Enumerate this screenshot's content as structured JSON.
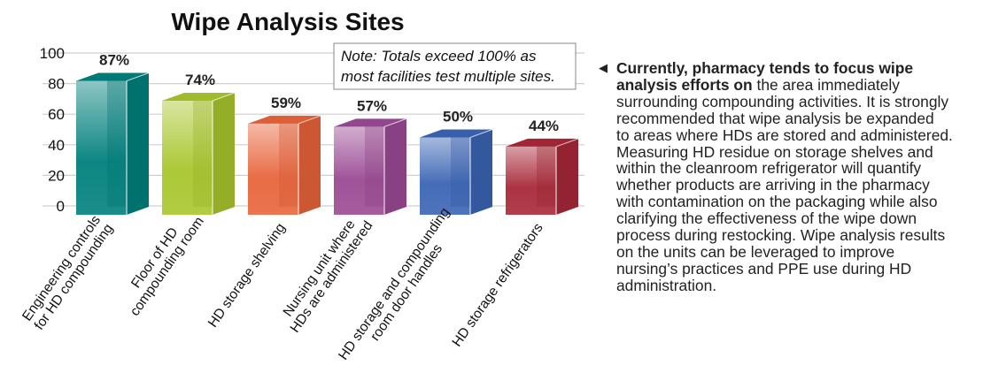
{
  "chart_data": {
    "type": "bar",
    "title": "Wipe Analysis Sites",
    "categories": [
      [
        "Engineering controls",
        "for HD compounding"
      ],
      [
        "Floor of HD",
        "compounding room"
      ],
      [
        "HD storage shelving"
      ],
      [
        "Nursing unit where",
        "HDs are administered"
      ],
      [
        "HD storage and compounding",
        "room door handles"
      ],
      [
        "HD storage refrigerators"
      ]
    ],
    "values": [
      87,
      74,
      59,
      57,
      50,
      44
    ],
    "data_labels": [
      "87%",
      "74%",
      "59%",
      "57%",
      "50%",
      "44%"
    ],
    "colors": [
      "#00807c",
      "#a8c62c",
      "#e8643a",
      "#9a4a94",
      "#3a64b4",
      "#a82838"
    ],
    "ylim": [
      0,
      100
    ],
    "yticks": [
      0,
      20,
      40,
      60,
      80,
      100
    ],
    "grid": true,
    "style": "3d",
    "annotation": [
      "Note: Totals exceed 100% as",
      "most facilities test multiple sites."
    ]
  },
  "side_text": {
    "icon": "left-triangle-icon",
    "lines": [
      {
        "bold": "Currently, pharmacy tends to focus wipe",
        "text": ""
      },
      {
        "bold": "analysis efforts on",
        "text": " the area immediately"
      },
      {
        "bold": "",
        "text": "surrounding compounding activities. It is strongly"
      },
      {
        "bold": "",
        "text": "recommended that wipe analysis be expanded"
      },
      {
        "bold": "",
        "text": "to areas where HDs are stored and administered."
      },
      {
        "bold": "",
        "text": "Measuring HD residue on storage shelves and"
      },
      {
        "bold": "",
        "text": "within the cleanroom refrigerator will quantify"
      },
      {
        "bold": "",
        "text": "whether products are arriving in the pharmacy"
      },
      {
        "bold": "",
        "text": "with contamination on the packaging while also"
      },
      {
        "bold": "",
        "text": "clarifying the effectiveness of the wipe down"
      },
      {
        "bold": "",
        "text": "process during restocking. Wipe analysis results"
      },
      {
        "bold": "",
        "text": "on the units can be leveraged to improve"
      },
      {
        "bold": "",
        "text": "nursing’s practices and PPE use during HD"
      },
      {
        "bold": "",
        "text": "administration."
      }
    ]
  }
}
